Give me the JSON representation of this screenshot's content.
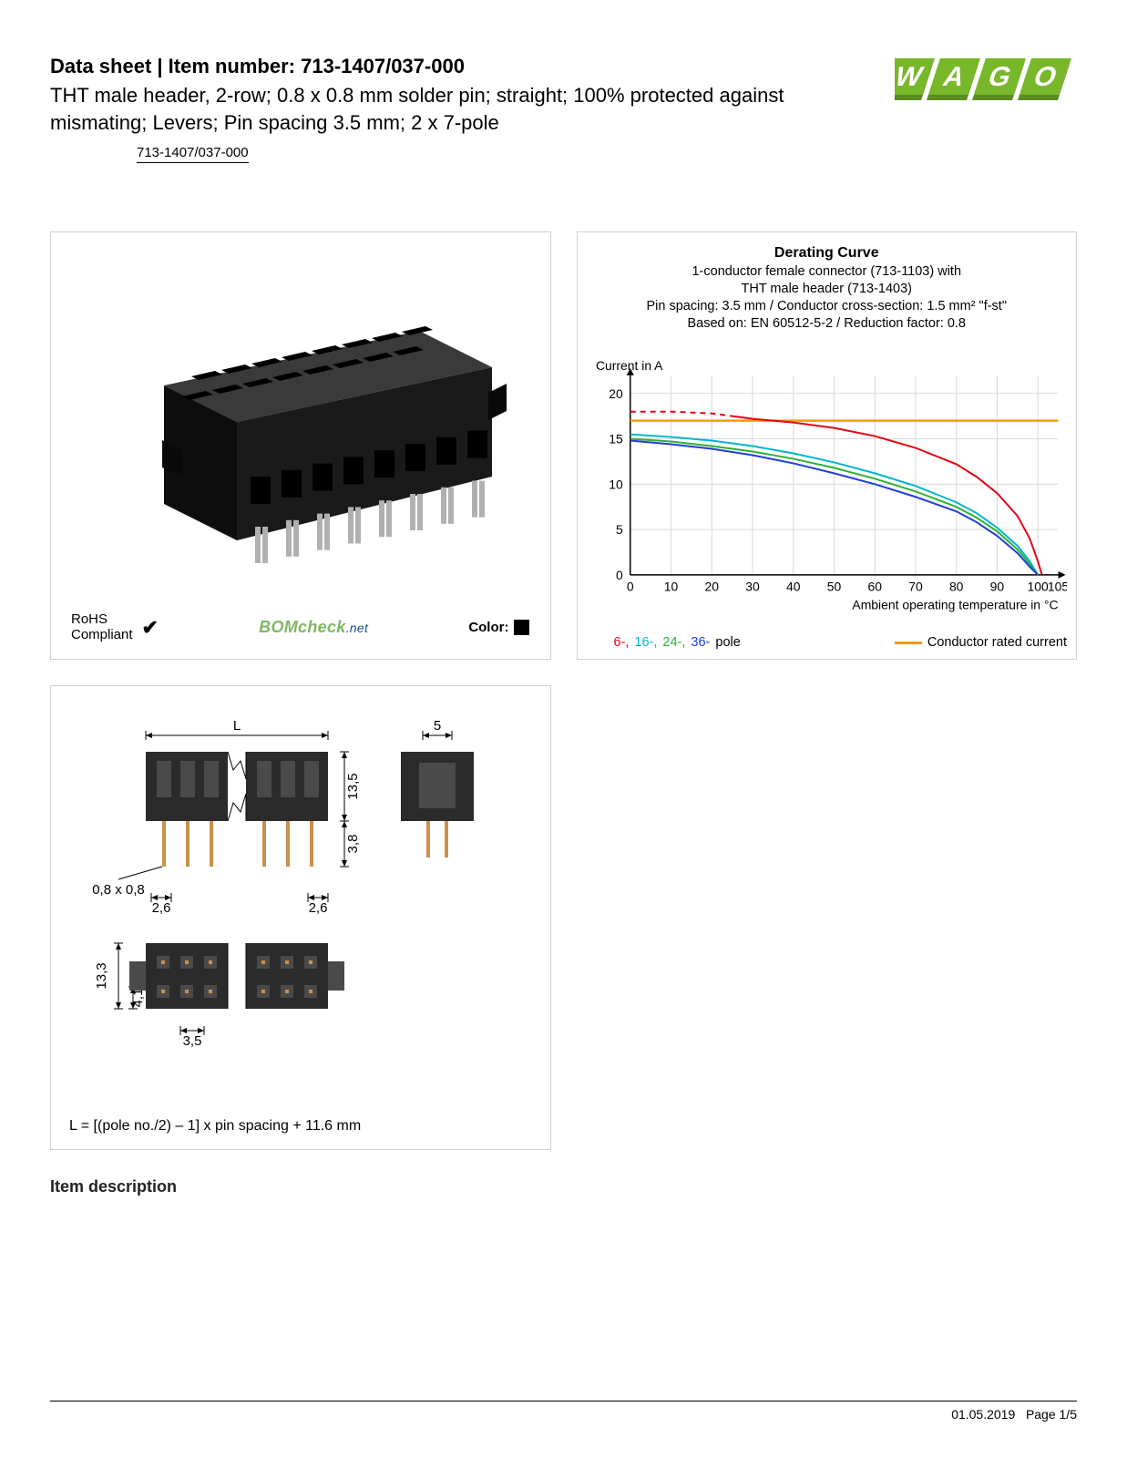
{
  "header": {
    "title_prefix": "Data sheet  |  Item number: ",
    "item_number": "713-1407/037-000",
    "subtitle": "THT male header, 2-row; 0.8 x 0.8 mm solder pin; straight; 100% protected against mismating; Levers; Pin spacing 3.5 mm; 2 x 7-pole",
    "part_link": "713-1407/037-000",
    "logo_text": "WAGO",
    "logo_color_primary": "#78b72a",
    "logo_color_shadow": "#5a8c1f"
  },
  "product_panel": {
    "rohs_line1": "RoHS",
    "rohs_line2": "Compliant",
    "check": "✔",
    "bomcheck_main": "BOMcheck",
    "bomcheck_suffix": ".net",
    "color_label": "Color:",
    "swatch_color": "#000000",
    "connector_body_color": "#1a1a1a",
    "connector_highlight": "#3a3a3a",
    "pin_color": "#b0b0b0"
  },
  "chart": {
    "title": "Derating Curve",
    "sub1": "1-conductor female connector (713-1103) with",
    "sub2": "THT male header (713-1403)",
    "sub3": "Pin spacing: 3.5 mm / Conductor cross-section: 1.5 mm² \"f-st\"",
    "sub4": "Based on: EN 60512-5-2 / Reduction factor: 0.8",
    "y_label": "Current in A",
    "x_label": "Ambient operating temperature in °C",
    "x_ticks": [
      0,
      10,
      20,
      30,
      40,
      50,
      60,
      70,
      80,
      90,
      100,
      105
    ],
    "y_ticks": [
      0,
      5,
      10,
      15,
      20
    ],
    "ylim": [
      0,
      22
    ],
    "xlim": [
      0,
      105
    ],
    "grid_color": "#d9d9d9",
    "axis_color": "#000000",
    "background": "#ffffff",
    "series": [
      {
        "name": "rated",
        "color": "#f39c12",
        "width": 2.5,
        "dash": "",
        "points": [
          [
            0,
            17
          ],
          [
            105,
            17
          ]
        ]
      },
      {
        "name": "6-pole",
        "color": "#e30613",
        "width": 2,
        "dash": "6 5",
        "dash_until_x": 25,
        "points": [
          [
            0,
            18
          ],
          [
            10,
            18
          ],
          [
            20,
            17.8
          ],
          [
            25,
            17.5
          ],
          [
            30,
            17.2
          ],
          [
            40,
            16.8
          ],
          [
            50,
            16.2
          ],
          [
            60,
            15.3
          ],
          [
            70,
            14
          ],
          [
            80,
            12.2
          ],
          [
            85,
            10.8
          ],
          [
            90,
            9
          ],
          [
            95,
            6.5
          ],
          [
            98,
            4
          ],
          [
            100,
            1.5
          ],
          [
            101,
            0
          ]
        ]
      },
      {
        "name": "16-pole",
        "color": "#00b6cc",
        "width": 2,
        "dash": "",
        "points": [
          [
            0,
            15.5
          ],
          [
            10,
            15.2
          ],
          [
            20,
            14.8
          ],
          [
            30,
            14.2
          ],
          [
            40,
            13.4
          ],
          [
            50,
            12.4
          ],
          [
            60,
            11.2
          ],
          [
            70,
            9.8
          ],
          [
            80,
            8
          ],
          [
            85,
            6.8
          ],
          [
            90,
            5.2
          ],
          [
            95,
            3.2
          ],
          [
            98,
            1.5
          ],
          [
            100,
            0
          ]
        ]
      },
      {
        "name": "24-pole",
        "color": "#2eb135",
        "width": 2,
        "dash": "",
        "points": [
          [
            0,
            15
          ],
          [
            10,
            14.7
          ],
          [
            20,
            14.2
          ],
          [
            30,
            13.6
          ],
          [
            40,
            12.8
          ],
          [
            50,
            11.8
          ],
          [
            60,
            10.6
          ],
          [
            70,
            9.2
          ],
          [
            80,
            7.5
          ],
          [
            85,
            6.3
          ],
          [
            90,
            4.8
          ],
          [
            95,
            2.8
          ],
          [
            98,
            1.2
          ],
          [
            100,
            0
          ]
        ]
      },
      {
        "name": "36-pole",
        "color": "#1f3fd6",
        "width": 2,
        "dash": "",
        "points": [
          [
            0,
            14.8
          ],
          [
            10,
            14.4
          ],
          [
            20,
            13.9
          ],
          [
            30,
            13.2
          ],
          [
            40,
            12.3
          ],
          [
            50,
            11.2
          ],
          [
            60,
            10
          ],
          [
            70,
            8.6
          ],
          [
            80,
            7
          ],
          [
            85,
            5.8
          ],
          [
            90,
            4.3
          ],
          [
            95,
            2.4
          ],
          [
            98,
            0.9
          ],
          [
            100,
            0
          ]
        ]
      }
    ],
    "legend": {
      "pole6": {
        "text": "6-",
        "color": "#e30613"
      },
      "pole16": {
        "text": "16-",
        "color": "#00b6cc"
      },
      "pole24": {
        "text": "24-",
        "color": "#2eb135"
      },
      "pole36": {
        "text": "36-",
        "color": "#1f3fd6"
      },
      "pole_suffix": "pole",
      "rated_label": "Conductor rated current",
      "rated_color": "#f39c12"
    }
  },
  "drawing": {
    "caption": "L = [(pole no./2) – 1] x pin spacing + 11.6 mm",
    "dim_L": "L",
    "dim_5": "5",
    "dim_13_5": "13,5",
    "dim_3_8": "3,8",
    "dim_08x08": "0,8 x 0,8",
    "dim_2_6a": "2,6",
    "dim_2_6b": "2,6",
    "dim_13_3": "13,3",
    "dim_4_1": "4,1",
    "dim_3_5": "3,5",
    "body_color": "#2b2b2b",
    "body_light": "#4a4a4a",
    "pin_color": "#cc8f4d",
    "line_color": "#000000"
  },
  "sections": {
    "item_description": "Item description"
  },
  "footer": {
    "date": "01.05.2019",
    "page": "Page 1/5"
  }
}
